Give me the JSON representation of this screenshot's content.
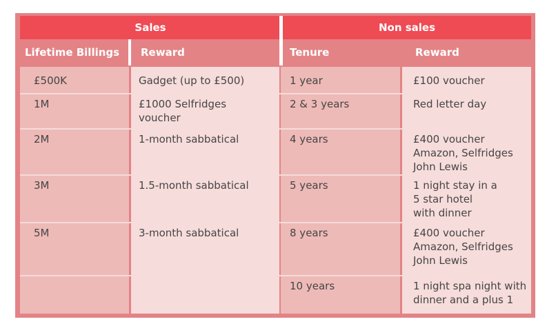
{
  "groups": {
    "sales": "Sales",
    "non_sales": "Non sales"
  },
  "columns": {
    "billings": "Lifetime Billings",
    "sales_reward": "Reward",
    "tenure": "Tenure",
    "non_sales_reward": "Reward"
  },
  "rows": [
    {
      "billings": "£500K",
      "sales_reward": "Gadget (up to £500)",
      "tenure": "1 year",
      "non_sales_reward": "£100 voucher"
    },
    {
      "billings": "1M",
      "sales_reward": "£1000 Selfridges\nvoucher",
      "tenure": "2 & 3 years",
      "non_sales_reward": "Red letter day"
    },
    {
      "billings": "2M",
      "sales_reward": "1-month sabbatical",
      "tenure": "4 years",
      "non_sales_reward": "£400 voucher\nAmazon, Selfridges\nJohn Lewis"
    },
    {
      "billings": "3M",
      "sales_reward": "1.5-month sabbatical",
      "tenure": "5 years",
      "non_sales_reward": "1 night stay in a\n5 star hotel\nwith dinner"
    },
    {
      "billings": "5M",
      "sales_reward": "3-month sabbatical",
      "tenure": "8 years",
      "non_sales_reward": "£400 voucher\nAmazon, Selfridges\nJohn Lewis"
    },
    {
      "billings": "",
      "sales_reward": "",
      "tenure": "10 years",
      "non_sales_reward": "1 night spa night with\ndinner and a plus 1"
    }
  ]
}
